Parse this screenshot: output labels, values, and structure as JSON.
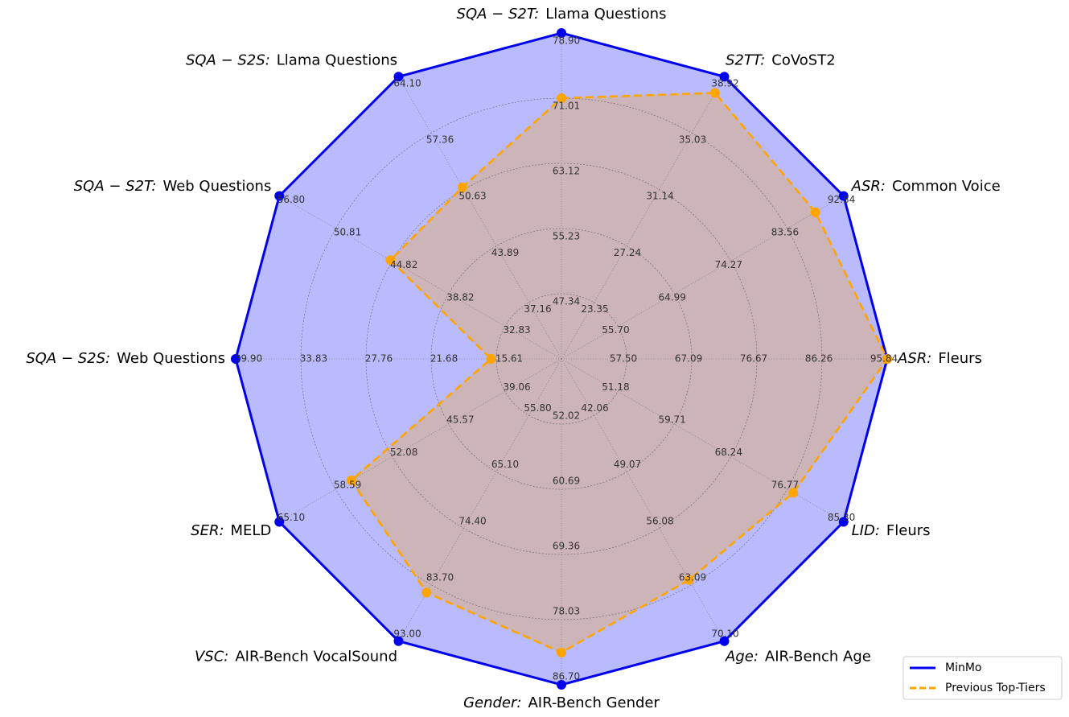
{
  "chart_data": {
    "type": "radar",
    "categories": [
      {
        "task": "SQA − S2T:",
        "dataset": "Llama Questions"
      },
      {
        "task": "S2TT:",
        "dataset": "CoVoST2"
      },
      {
        "task": "ASR:",
        "dataset": "Common Voice"
      },
      {
        "task": "ASR:",
        "dataset": "Fleurs"
      },
      {
        "task": "LID:",
        "dataset": "Fleurs"
      },
      {
        "task": "Age:",
        "dataset": "AIR-Bench Age"
      },
      {
        "task": "Gender:",
        "dataset": "AIR-Bench Gender"
      },
      {
        "task": "VSC:",
        "dataset": "AIR-Bench VocalSound"
      },
      {
        "task": "SER:",
        "dataset": "MELD"
      },
      {
        "task": "SQA − S2S:",
        "dataset": "Web Questions"
      },
      {
        "task": "SQA − S2T:",
        "dataset": "Web Questions"
      },
      {
        "task": "SQA − S2S:",
        "dataset": "Llama Questions"
      }
    ],
    "axis_ticks": [
      [
        {
          "value": 47.34,
          "label": "47.34"
        },
        {
          "value": 55.23,
          "label": "55.23"
        },
        {
          "value": 63.12,
          "label": "63.12"
        },
        {
          "value": 71.01,
          "label": "71.01"
        },
        {
          "value": 78.9,
          "label": "78.90"
        }
      ],
      [
        {
          "value": 23.35,
          "label": "23.35"
        },
        {
          "value": 27.24,
          "label": "27.24"
        },
        {
          "value": 31.14,
          "label": "31.14"
        },
        {
          "value": 35.03,
          "label": "35.03"
        },
        {
          "value": 38.92,
          "label": "38.92"
        }
      ],
      [
        {
          "value": 55.7,
          "label": "55.70"
        },
        {
          "value": 64.99,
          "label": "64.99"
        },
        {
          "value": 74.27,
          "label": "74.27"
        },
        {
          "value": 83.56,
          "label": "83.56"
        },
        {
          "value": 92.84,
          "label": "92.84"
        }
      ],
      [
        {
          "value": 57.5,
          "label": "57.50"
        },
        {
          "value": 67.09,
          "label": "67.09"
        },
        {
          "value": 76.67,
          "label": "76.67"
        },
        {
          "value": 86.26,
          "label": "86.26"
        },
        {
          "value": 95.84,
          "label": "95.84"
        }
      ],
      [
        {
          "value": 51.18,
          "label": "51.18"
        },
        {
          "value": 59.71,
          "label": "59.71"
        },
        {
          "value": 68.24,
          "label": "68.24"
        },
        {
          "value": 76.77,
          "label": "76.77"
        },
        {
          "value": 85.3,
          "label": "85.30"
        }
      ],
      [
        {
          "value": 42.06,
          "label": "42.06"
        },
        {
          "value": 49.07,
          "label": "49.07"
        },
        {
          "value": 56.08,
          "label": "56.08"
        },
        {
          "value": 63.09,
          "label": "63.09"
        },
        {
          "value": 70.1,
          "label": "70.10"
        }
      ],
      [
        {
          "value": 52.02,
          "label": "52.02"
        },
        {
          "value": 60.69,
          "label": "60.69"
        },
        {
          "value": 69.36,
          "label": "69.36"
        },
        {
          "value": 78.03,
          "label": "78.03"
        },
        {
          "value": 86.7,
          "label": "86.70"
        }
      ],
      [
        {
          "value": 55.8,
          "label": "55.80"
        },
        {
          "value": 65.1,
          "label": "65.10"
        },
        {
          "value": 74.4,
          "label": "74.40"
        },
        {
          "value": 83.7,
          "label": "83.70"
        },
        {
          "value": 93,
          "label": "93.00"
        }
      ],
      [
        {
          "value": 39.06,
          "label": "39.06"
        },
        {
          "value": 45.57,
          "label": "45.57"
        },
        {
          "value": 52.08,
          "label": "52.08"
        },
        {
          "value": 58.59,
          "label": "58.59"
        },
        {
          "value": 65.1,
          "label": "65.10"
        }
      ],
      [
        {
          "value": 15.61,
          "label": "15.61"
        },
        {
          "value": 21.68,
          "label": "21.68"
        },
        {
          "value": 27.76,
          "label": "27.76"
        },
        {
          "value": 33.83,
          "label": "33.83"
        },
        {
          "value": 39.9,
          "label": "39.90"
        }
      ],
      [
        {
          "value": 32.83,
          "label": "32.83"
        },
        {
          "value": 38.82,
          "label": "38.82"
        },
        {
          "value": 44.82,
          "label": "44.82"
        },
        {
          "value": 50.81,
          "label": "50.81"
        },
        {
          "value": 56.8,
          "label": "56.80"
        }
      ],
      [
        {
          "value": 37.16,
          "label": "37.16"
        },
        {
          "value": 43.89,
          "label": "43.89"
        },
        {
          "value": 50.63,
          "label": "50.63"
        },
        {
          "value": 57.36,
          "label": "57.36"
        },
        {
          "value": 64.1,
          "label": "64.10"
        }
      ]
    ],
    "series": [
      {
        "name": "MinMo",
        "color": "#0000ee",
        "fill": "#0000ff",
        "dashed": false,
        "values": [
          78.9,
          38.92,
          92.84,
          95.84,
          85.3,
          70.1,
          86.7,
          93.0,
          65.1,
          39.9,
          56.8,
          64.1
        ]
      },
      {
        "name": "Previous Top-Tiers",
        "color": "#ffa500",
        "fill": "#ffa500",
        "dashed": true,
        "values": [
          71.01,
          37.8,
          88.2,
          95.84,
          77.7,
          62.5,
          82.4,
          85.0,
          56.8,
          16.1,
          45.0,
          50.9
        ]
      }
    ],
    "legend": "lower right",
    "grid": true
  }
}
